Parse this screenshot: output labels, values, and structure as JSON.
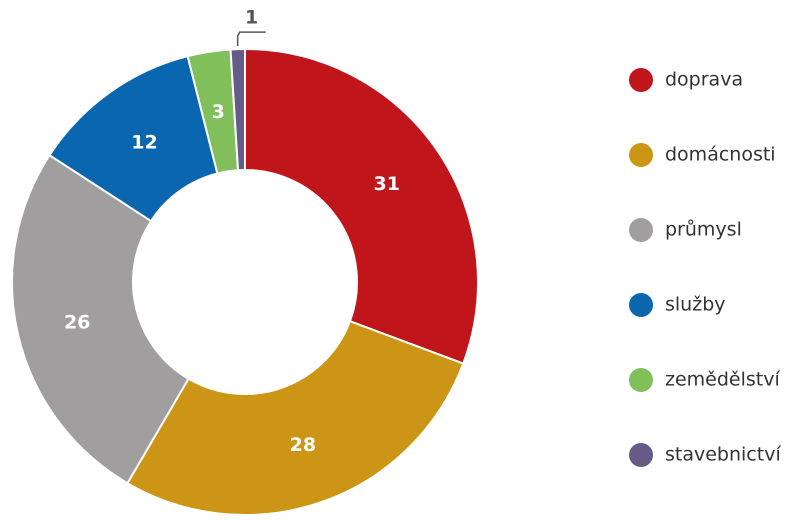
{
  "chart_data": {
    "type": "donut",
    "categories": [
      "doprava",
      "domácnosti",
      "průmysl",
      "služby",
      "zemědělství",
      "stavebnictví"
    ],
    "values": [
      31,
      28,
      26,
      12,
      3,
      1
    ],
    "colors": [
      "#c0161b",
      "#cc9515",
      "#a09e9e",
      "#0b66b0",
      "#80bf5a",
      "#665b86"
    ]
  }
}
